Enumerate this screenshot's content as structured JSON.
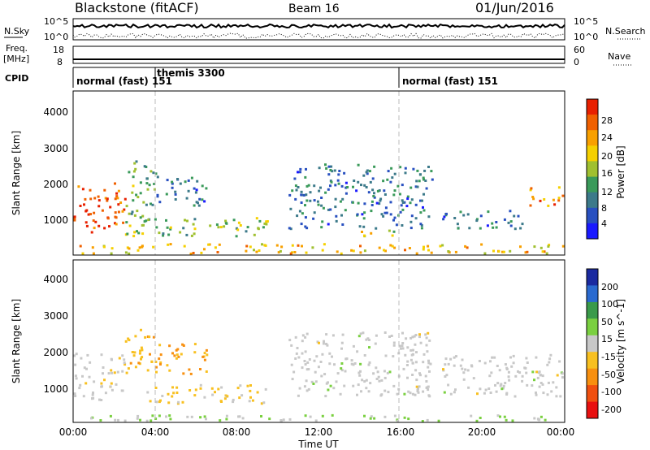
{
  "header": {
    "station": "Blackstone (fitACF)",
    "beam": "Beam 16",
    "date": "01/Jun/2016"
  },
  "top_panels": {
    "nsky_label": "N.Sky",
    "nsky_ticks": [
      "10^5",
      "10^0"
    ],
    "nsearch_label": "N.Search",
    "nsearch_ticks": [
      "10^5",
      "10^0"
    ],
    "freq_label": "Freq.",
    "freq_unit": "[MHz]",
    "freq_ticks": [
      "18",
      "8"
    ],
    "nave_label": "Nave",
    "nave_ticks": [
      "60",
      "0"
    ],
    "cpid_label": "CPID",
    "cpid_segments": [
      {
        "start": "00:00",
        "label": "normal (fast) 151"
      },
      {
        "start": "04:00",
        "label": "themis 3300"
      },
      {
        "start": "16:00",
        "label": "normal (fast) 151"
      }
    ]
  },
  "axes": {
    "xlabel": "Time UT",
    "xticks": [
      "00:00",
      "04:00",
      "08:00",
      "12:00",
      "16:00",
      "20:00",
      "00:00"
    ],
    "ylabel": "Slant Range [km]",
    "yticks": [
      "1000",
      "2000",
      "3000",
      "4000"
    ]
  },
  "power_scale": {
    "label": "Power [dB]",
    "ticks": [
      "4",
      "8",
      "12",
      "16",
      "20",
      "24",
      "28"
    ],
    "colors": [
      "#1a1aff",
      "#2850c0",
      "#3c7a8a",
      "#3a9a5a",
      "#a0c030",
      "#f5d000",
      "#f8a000",
      "#f06000",
      "#e82000"
    ]
  },
  "velocity_scale": {
    "label": "Velocity [m s^-1]",
    "ticks": [
      "200",
      "100",
      "50",
      "15",
      "-15",
      "-50",
      "-100",
      "-200"
    ],
    "colors": [
      "#1a2aa0",
      "#2a6ad0",
      "#3a9a4a",
      "#7ad040",
      "#c8c8c8",
      "#f8c020",
      "#f89010",
      "#f05010",
      "#e81010"
    ]
  },
  "chart_data": {
    "type": "heatmap",
    "title": "Blackstone (fitACF)",
    "xlabel": "Time UT",
    "ylabel": "Slant Range [km]",
    "xlim": [
      0,
      24
    ],
    "ylim": [
      180,
      4500
    ],
    "panels": [
      {
        "name": "Power [dB]",
        "zlim": [
          0,
          30
        ],
        "echo_regions": [
          {
            "t0": 0.0,
            "t1": 2.5,
            "r0": 800,
            "r1": 2100,
            "peak": 26
          },
          {
            "t0": 2.5,
            "t1": 4.0,
            "r0": 1100,
            "r1": 2700,
            "peak": 12
          },
          {
            "t0": 2.5,
            "t1": 9.5,
            "r0": 700,
            "r1": 1200,
            "peak": 14
          },
          {
            "t0": 4.0,
            "t1": 6.5,
            "r0": 1500,
            "r1": 2300,
            "peak": 8
          },
          {
            "t0": 10.5,
            "t1": 17.5,
            "r0": 900,
            "r1": 2600,
            "peak": 8
          },
          {
            "t0": 14.0,
            "t1": 16.0,
            "r0": 700,
            "r1": 900,
            "peak": 18
          },
          {
            "t0": 18.0,
            "t1": 22.0,
            "r0": 900,
            "r1": 1400,
            "peak": 8
          },
          {
            "t0": 22.0,
            "t1": 24.0,
            "r0": 1500,
            "r1": 2000,
            "peak": 22
          },
          {
            "t0": 0.0,
            "t1": 24.0,
            "r0": 200,
            "r1": 500,
            "peak": 20
          }
        ]
      },
      {
        "name": "Velocity [m s^-1]",
        "zlim": [
          -250,
          250
        ],
        "echo_regions": [
          {
            "t0": 0.0,
            "t1": 2.5,
            "r0": 800,
            "r1": 2100,
            "v": -10
          },
          {
            "t0": 2.5,
            "t1": 4.0,
            "r0": 1500,
            "r1": 2700,
            "v": -70
          },
          {
            "t0": 3.5,
            "t1": 9.5,
            "r0": 700,
            "r1": 1200,
            "v": -40
          },
          {
            "t0": 4.0,
            "t1": 6.5,
            "r0": 1500,
            "r1": 2300,
            "v": -90
          },
          {
            "t0": 10.5,
            "t1": 17.5,
            "r0": 900,
            "r1": 2600,
            "v": 0
          },
          {
            "t0": 18.0,
            "t1": 24.0,
            "r0": 900,
            "r1": 2000,
            "v": 0
          },
          {
            "t0": 0.0,
            "t1": 24.0,
            "r0": 200,
            "r1": 400,
            "v": 30
          }
        ]
      }
    ]
  }
}
